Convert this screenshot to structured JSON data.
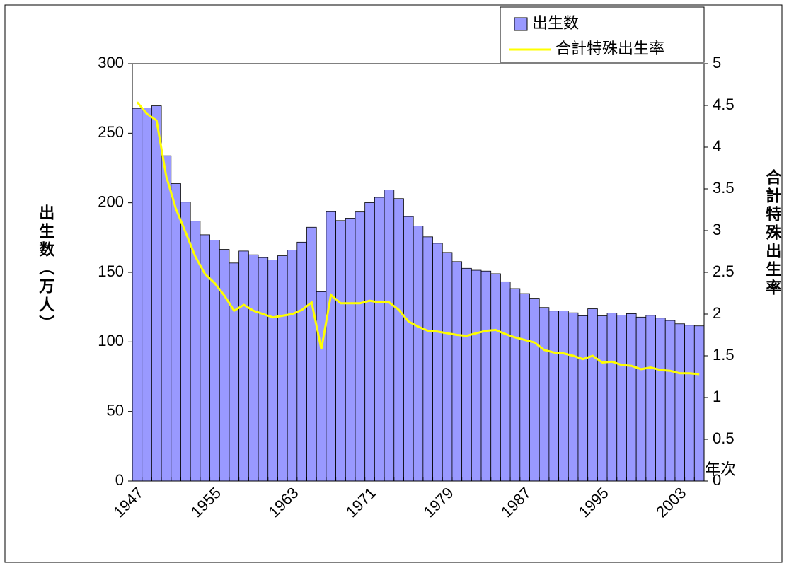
{
  "chart_data": {
    "type": "bar",
    "x_label": "年次",
    "y_label": "出生数（万人）",
    "y2_label": "合計特殊出生率",
    "categories": [
      "1947",
      null,
      null,
      null,
      null,
      null,
      null,
      null,
      "1955",
      null,
      null,
      null,
      null,
      null,
      null,
      null,
      "1963",
      null,
      null,
      null,
      null,
      null,
      null,
      null,
      "1971",
      null,
      null,
      null,
      null,
      null,
      null,
      null,
      "1979",
      null,
      null,
      null,
      null,
      null,
      null,
      null,
      "1987",
      null,
      null,
      null,
      null,
      null,
      null,
      null,
      "1995",
      null,
      null,
      null,
      null,
      null,
      null,
      null,
      "2003",
      null,
      null
    ],
    "series": [
      {
        "name": "出生数",
        "type": "bar",
        "color": "#9999ff",
        "values": [
          267.9,
          268.2,
          269.7,
          233.8,
          213.8,
          200.5,
          186.8,
          177.0,
          173.1,
          166.5,
          156.7,
          165.3,
          162.6,
          160.6,
          158.9,
          161.9,
          166.0,
          171.7,
          182.4,
          136.1,
          193.6,
          187.2,
          188.9,
          193.4,
          200.1,
          203.9,
          209.2,
          203.0,
          190.1,
          183.3,
          175.5,
          170.9,
          164.3,
          157.7,
          152.9,
          151.5,
          150.9,
          149.0,
          143.2,
          138.3,
          134.7,
          131.4,
          124.7,
          122.2,
          122.3,
          120.9,
          118.8,
          123.8,
          118.7,
          120.7,
          119.2,
          120.3,
          117.8,
          119.1,
          117.1,
          115.4,
          113.0,
          112.0,
          111.5
        ]
      },
      {
        "name": "合計特殊出生率",
        "type": "line",
        "axis": "y2",
        "color": "#ffff00",
        "values": [
          4.54,
          4.4,
          4.32,
          3.65,
          3.26,
          2.98,
          2.69,
          2.48,
          2.37,
          2.22,
          2.04,
          2.11,
          2.04,
          2.0,
          1.96,
          1.98,
          2.0,
          2.05,
          2.14,
          1.58,
          2.23,
          2.13,
          2.13,
          2.13,
          2.16,
          2.14,
          2.14,
          2.05,
          1.91,
          1.85,
          1.8,
          1.79,
          1.77,
          1.75,
          1.74,
          1.77,
          1.8,
          1.81,
          1.76,
          1.72,
          1.69,
          1.66,
          1.57,
          1.54,
          1.53,
          1.5,
          1.46,
          1.5,
          1.42,
          1.43,
          1.39,
          1.38,
          1.34,
          1.36,
          1.33,
          1.32,
          1.29,
          1.29,
          1.28
        ]
      }
    ],
    "ylim": [
      0,
      300
    ],
    "yticks": [
      0,
      50,
      100,
      150,
      200,
      250,
      300
    ],
    "y2lim": [
      0,
      5
    ],
    "y2ticks": [
      0,
      0.5,
      1,
      1.5,
      2,
      2.5,
      3,
      3.5,
      4,
      4.5,
      5
    ],
    "legend": "upper right"
  }
}
